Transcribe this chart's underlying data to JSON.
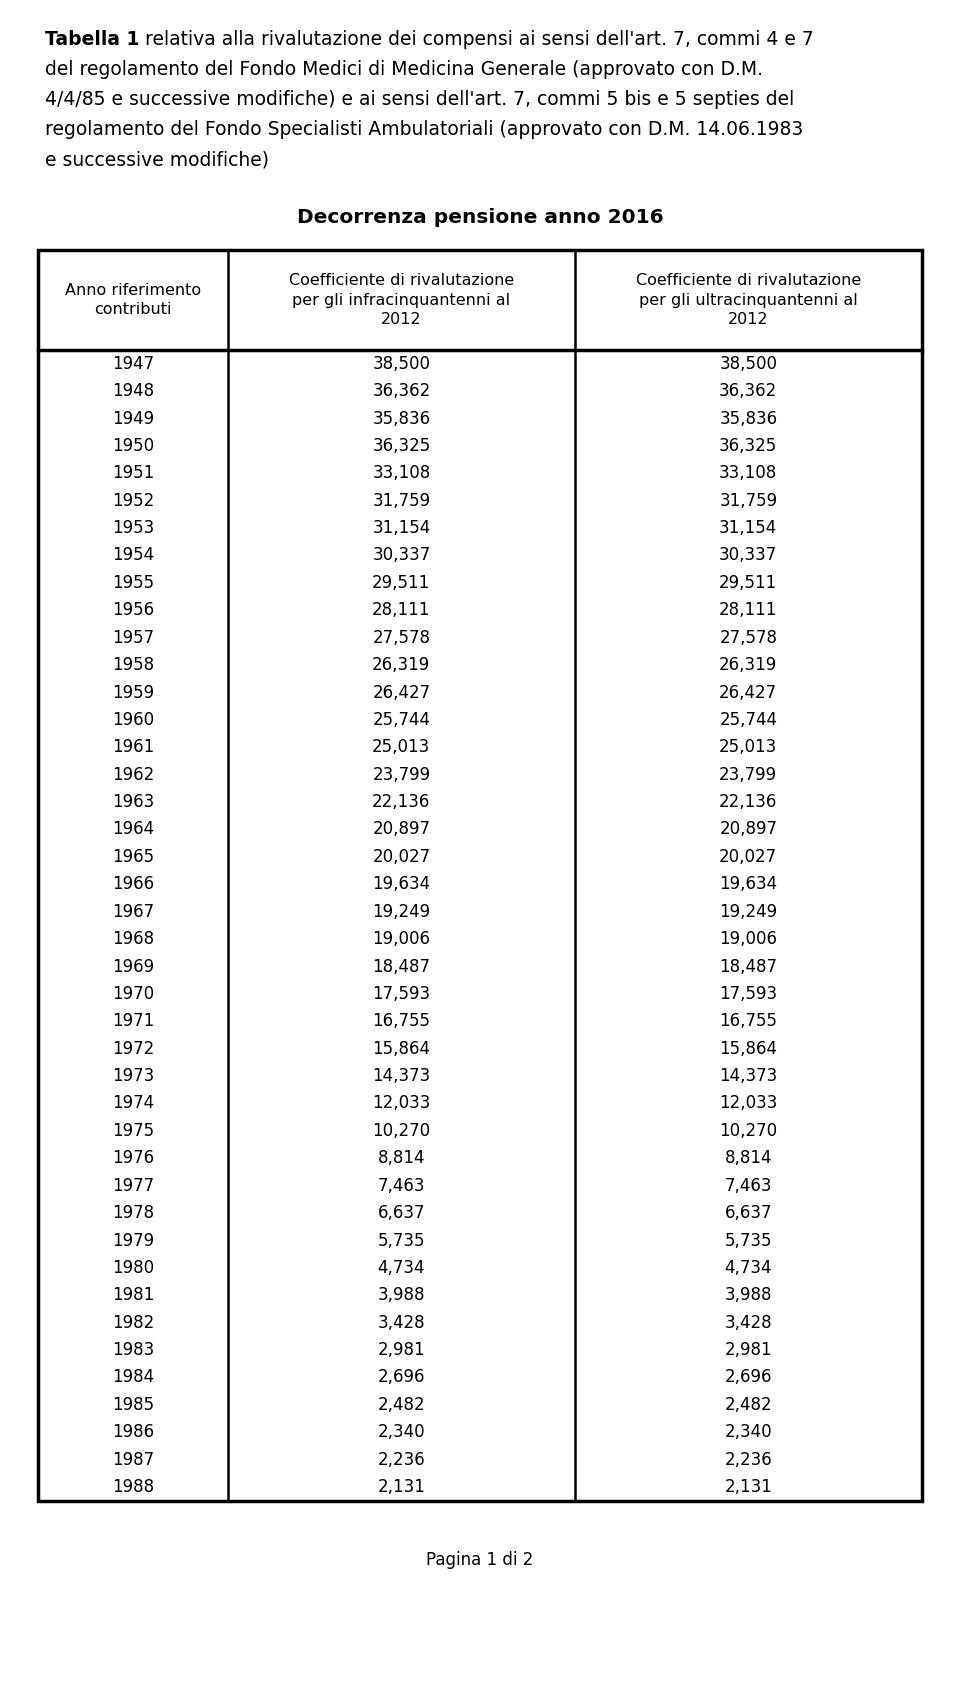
{
  "title_line1_bold": "Tabella 1",
  "title_line1_rest": " relativa alla rivalutazione dei compensi ai sensi dell'art. 7, commi 4 e 7",
  "title_lines": [
    "del regolamento del Fondo Medici di Medicina Generale (approvato con D.M.",
    "4/4/85 e successive modifiche) e ai sensi dell'art. 7, commi 5 bis e 5 septies del",
    "regolamento del Fondo Specialisti Ambulatoriali (approvato con D.M. 14.06.1983",
    "e successive modifiche)"
  ],
  "subtitle": "Decorrenza pensione anno 2016",
  "col_headers": [
    "Anno riferimento\ncontributi",
    "Coefficiente di rivalutazione\nper gli infracinquantenni al\n2012",
    "Coefficiente di rivalutazione\nper gli ultracinquantenni al\n2012"
  ],
  "rows": [
    [
      "1947",
      "38,500",
      "38,500"
    ],
    [
      "1948",
      "36,362",
      "36,362"
    ],
    [
      "1949",
      "35,836",
      "35,836"
    ],
    [
      "1950",
      "36,325",
      "36,325"
    ],
    [
      "1951",
      "33,108",
      "33,108"
    ],
    [
      "1952",
      "31,759",
      "31,759"
    ],
    [
      "1953",
      "31,154",
      "31,154"
    ],
    [
      "1954",
      "30,337",
      "30,337"
    ],
    [
      "1955",
      "29,511",
      "29,511"
    ],
    [
      "1956",
      "28,111",
      "28,111"
    ],
    [
      "1957",
      "27,578",
      "27,578"
    ],
    [
      "1958",
      "26,319",
      "26,319"
    ],
    [
      "1959",
      "26,427",
      "26,427"
    ],
    [
      "1960",
      "25,744",
      "25,744"
    ],
    [
      "1961",
      "25,013",
      "25,013"
    ],
    [
      "1962",
      "23,799",
      "23,799"
    ],
    [
      "1963",
      "22,136",
      "22,136"
    ],
    [
      "1964",
      "20,897",
      "20,897"
    ],
    [
      "1965",
      "20,027",
      "20,027"
    ],
    [
      "1966",
      "19,634",
      "19,634"
    ],
    [
      "1967",
      "19,249",
      "19,249"
    ],
    [
      "1968",
      "19,006",
      "19,006"
    ],
    [
      "1969",
      "18,487",
      "18,487"
    ],
    [
      "1970",
      "17,593",
      "17,593"
    ],
    [
      "1971",
      "16,755",
      "16,755"
    ],
    [
      "1972",
      "15,864",
      "15,864"
    ],
    [
      "1973",
      "14,373",
      "14,373"
    ],
    [
      "1974",
      "12,033",
      "12,033"
    ],
    [
      "1975",
      "10,270",
      "10,270"
    ],
    [
      "1976",
      "8,814",
      "8,814"
    ],
    [
      "1977",
      "7,463",
      "7,463"
    ],
    [
      "1978",
      "6,637",
      "6,637"
    ],
    [
      "1979",
      "5,735",
      "5,735"
    ],
    [
      "1980",
      "4,734",
      "4,734"
    ],
    [
      "1981",
      "3,988",
      "3,988"
    ],
    [
      "1982",
      "3,428",
      "3,428"
    ],
    [
      "1983",
      "2,981",
      "2,981"
    ],
    [
      "1984",
      "2,696",
      "2,696"
    ],
    [
      "1985",
      "2,482",
      "2,482"
    ],
    [
      "1986",
      "2,340",
      "2,340"
    ],
    [
      "1987",
      "2,236",
      "2,236"
    ],
    [
      "1988",
      "2,131",
      "2,131"
    ]
  ],
  "footer": "Pagina 1 di 2",
  "bg_color": "#ffffff",
  "text_color": "#000000"
}
